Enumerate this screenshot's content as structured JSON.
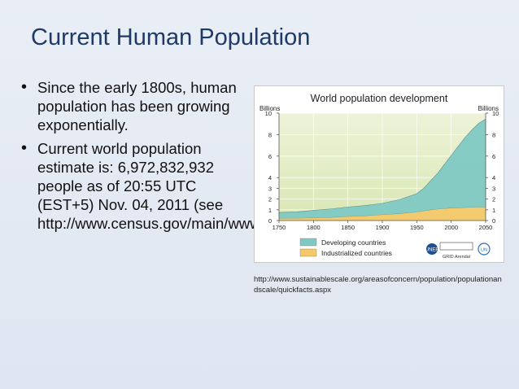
{
  "slide": {
    "title": "Current Human Population",
    "bullets": [
      "Since the early 1800s, human population has been growing exponentially.",
      "Current world population estimate is: 6,972,832,932 people as of 20:55 UTC (EST+5) Nov. 04, 2011 (see http://www.census.gov/main/www/popclock.html)"
    ],
    "source": "http://www.sustainablescale.org/areasofconcern/population/populationandscale/quickfacts.aspx"
  },
  "colors": {
    "title": "#1f3a64",
    "developing": "#7fc9c4",
    "industrialized": "#f5c86a",
    "plot_bg": "#e3ecc6"
  },
  "logos": [
    "UNEP",
    "GRID Arendal",
    "UN"
  ],
  "chart_data": {
    "type": "area",
    "stacked": true,
    "title": "World population development",
    "ylabel_left": "Billions",
    "ylabel_right": "Billions",
    "x_ticks": [
      1750,
      1800,
      1850,
      1900,
      1950,
      2000,
      2050
    ],
    "y_ticks_left": [
      0,
      1,
      2,
      3,
      4,
      6,
      8,
      10
    ],
    "y_ticks_right": [
      0,
      1,
      2,
      3,
      4,
      6,
      8,
      10
    ],
    "xlim": [
      1750,
      2050
    ],
    "ylim": [
      0,
      10
    ],
    "grid": true,
    "legend_position": "bottom",
    "x": [
      1750,
      1775,
      1800,
      1825,
      1850,
      1875,
      1900,
      1925,
      1950,
      1960,
      1970,
      1980,
      1990,
      2000,
      2010,
      2020,
      2030,
      2040,
      2050
    ],
    "series": [
      {
        "name": "Industrialized countries",
        "color": "#f5c86a",
        "values": [
          0.2,
          0.22,
          0.25,
          0.3,
          0.38,
          0.45,
          0.55,
          0.65,
          0.8,
          0.9,
          1.0,
          1.07,
          1.12,
          1.17,
          1.2,
          1.22,
          1.24,
          1.25,
          1.25
        ]
      },
      {
        "name": "Developing countries",
        "color": "#7fc9c4",
        "values": [
          0.55,
          0.58,
          0.7,
          0.78,
          0.88,
          0.95,
          1.05,
          1.3,
          1.7,
          2.1,
          2.7,
          3.3,
          4.1,
          4.9,
          5.7,
          6.5,
          7.2,
          7.8,
          8.2
        ]
      }
    ]
  }
}
